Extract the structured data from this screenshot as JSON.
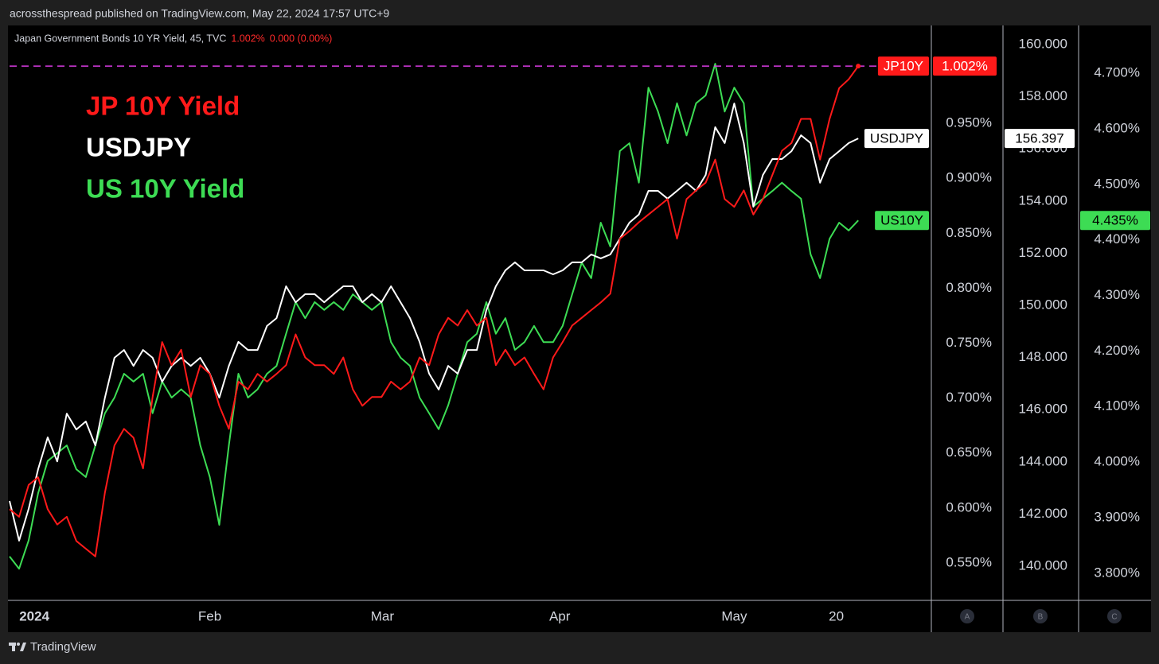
{
  "header": {
    "publisher": "acrossthespread published on TradingView.com, May 22, 2024 17:57 UTC+9",
    "symbol": "Japan Government Bonds 10 YR Yield, 45, TVC",
    "last": "1.002%",
    "change": "0.000 (0.00%)"
  },
  "footer": {
    "brand": "TradingView"
  },
  "chart_data": {
    "type": "line",
    "annotations": [
      {
        "text": "JP 10Y Yield",
        "color": "#ff1a1a"
      },
      {
        "text": "USDJPY",
        "color": "#ffffff"
      },
      {
        "text": "US 10Y Yield",
        "color": "#3ddc54"
      }
    ],
    "axis_names": [
      "A",
      "B",
      "C"
    ],
    "xlim": [
      0,
      96.5
    ],
    "xticks": [
      {
        "value": 2.6,
        "label": "2024"
      },
      {
        "value": 21.0,
        "label": "Feb"
      },
      {
        "value": 39.1,
        "label": "Mar"
      },
      {
        "value": 57.7,
        "label": "Apr"
      },
      {
        "value": 76.0,
        "label": "May"
      },
      {
        "value": 86.7,
        "label": "20"
      }
    ],
    "ylim": [
      0.516,
      1.039
    ],
    "yticks": [
      {
        "value": 0.55,
        "label": "0.550%"
      },
      {
        "value": 0.6,
        "label": "0.600%"
      },
      {
        "value": 0.65,
        "label": "0.650%"
      },
      {
        "value": 0.7,
        "label": "0.700%"
      },
      {
        "value": 0.75,
        "label": "0.750%"
      },
      {
        "value": 0.8,
        "label": "0.800%"
      },
      {
        "value": 0.85,
        "label": "0.850%"
      },
      {
        "value": 0.9,
        "label": "0.900%"
      },
      {
        "value": 0.95,
        "label": "0.950%"
      }
    ],
    "y2lim": [
      138.69,
      160.73
    ],
    "y2ticks": [
      {
        "value": 140,
        "label": "140.000"
      },
      {
        "value": 142,
        "label": "142.000"
      },
      {
        "value": 144,
        "label": "144.000"
      },
      {
        "value": 146,
        "label": "146.000"
      },
      {
        "value": 148,
        "label": "148.000"
      },
      {
        "value": 150,
        "label": "150.000"
      },
      {
        "value": 152,
        "label": "152.000"
      },
      {
        "value": 154,
        "label": "154.000"
      },
      {
        "value": 156,
        "label": "156.000"
      },
      {
        "value": 158,
        "label": "158.000"
      },
      {
        "value": 160,
        "label": "160.000"
      }
    ],
    "y3lim": [
      3.751,
      4.786
    ],
    "y3ticks": [
      {
        "value": 3.8,
        "label": "3.800%"
      },
      {
        "value": 3.9,
        "label": "3.900%"
      },
      {
        "value": 4.0,
        "label": "4.000%"
      },
      {
        "value": 4.1,
        "label": "4.100%"
      },
      {
        "value": 4.2,
        "label": "4.200%"
      },
      {
        "value": 4.3,
        "label": "4.300%"
      },
      {
        "value": 4.4,
        "label": "4.400%"
      },
      {
        "value": 4.5,
        "label": "4.500%"
      },
      {
        "value": 4.6,
        "label": "4.600%"
      },
      {
        "value": 4.7,
        "label": "4.700%"
      }
    ],
    "series": [
      {
        "name": "JP10Y",
        "color": "#ff1a1a",
        "label_text_color": "#ffffff",
        "axis": "y",
        "last_value_label": "1.002%",
        "last_value_line": true,
        "last_value_line_color": "#d63be0",
        "values": [
          0.599,
          0.592,
          0.621,
          0.628,
          0.599,
          0.585,
          0.592,
          0.57,
          0.563,
          0.556,
          0.614,
          0.657,
          0.672,
          0.664,
          0.636,
          0.701,
          0.751,
          0.73,
          0.744,
          0.701,
          0.73,
          0.722,
          0.693,
          0.672,
          0.715,
          0.708,
          0.722,
          0.715,
          0.722,
          0.73,
          0.758,
          0.737,
          0.73,
          0.73,
          0.722,
          0.737,
          0.708,
          0.693,
          0.701,
          0.701,
          0.715,
          0.708,
          0.715,
          0.737,
          0.73,
          0.758,
          0.773,
          0.766,
          0.78,
          0.766,
          0.773,
          0.73,
          0.744,
          0.73,
          0.737,
          0.722,
          0.708,
          0.737,
          0.751,
          0.766,
          0.773,
          0.78,
          0.787,
          0.795,
          0.845,
          0.852,
          0.86,
          0.867,
          0.874,
          0.881,
          0.845,
          0.881,
          0.889,
          0.896,
          0.917,
          0.881,
          0.874,
          0.889,
          0.867,
          0.881,
          0.903,
          0.925,
          0.932,
          0.954,
          0.954,
          0.917,
          0.954,
          0.982,
          0.99,
          1.002
        ]
      },
      {
        "name": "USDJPY",
        "color": "#ffffff",
        "label_text_color": "#000000",
        "axis": "y2",
        "last_value_label": "156.397",
        "last_value_line": false,
        "values": [
          142.5,
          140.98,
          142.2,
          143.72,
          144.94,
          144.02,
          145.85,
          145.24,
          145.55,
          144.63,
          146.46,
          147.99,
          148.29,
          147.68,
          148.29,
          147.99,
          147.07,
          147.68,
          147.99,
          147.68,
          147.99,
          147.38,
          146.46,
          147.68,
          148.6,
          148.29,
          148.29,
          149.21,
          149.51,
          150.73,
          150.12,
          150.43,
          150.43,
          150.12,
          150.43,
          150.73,
          150.73,
          150.12,
          150.43,
          150.12,
          150.73,
          150.12,
          149.51,
          148.6,
          147.38,
          146.77,
          147.68,
          147.38,
          148.29,
          148.29,
          149.82,
          150.73,
          151.34,
          151.65,
          151.34,
          151.34,
          151.34,
          151.19,
          151.34,
          151.65,
          151.65,
          151.95,
          151.8,
          151.95,
          152.56,
          153.17,
          153.48,
          154.39,
          154.39,
          154.09,
          154.39,
          154.7,
          154.39,
          155.0,
          156.83,
          156.22,
          157.74,
          156.22,
          153.78,
          155.0,
          155.61,
          155.61,
          155.91,
          156.52,
          156.22,
          154.7,
          155.61,
          155.91,
          156.22,
          156.397
        ]
      },
      {
        "name": "US10Y",
        "color": "#3ddc54",
        "label_text_color": "#000000",
        "axis": "y3",
        "last_value_label": "4.435%",
        "last_value_line": false,
        "values": [
          3.83,
          3.808,
          3.859,
          3.944,
          4.002,
          4.016,
          4.03,
          3.987,
          3.973,
          4.03,
          4.088,
          4.116,
          4.159,
          4.145,
          4.159,
          4.088,
          4.145,
          4.116,
          4.131,
          4.116,
          4.03,
          3.973,
          3.887,
          4.03,
          4.159,
          4.116,
          4.131,
          4.159,
          4.173,
          4.231,
          4.288,
          4.259,
          4.288,
          4.274,
          4.288,
          4.274,
          4.302,
          4.288,
          4.274,
          4.288,
          4.216,
          4.188,
          4.173,
          4.116,
          4.088,
          4.059,
          4.102,
          4.159,
          4.216,
          4.231,
          4.288,
          4.231,
          4.259,
          4.202,
          4.216,
          4.245,
          4.216,
          4.216,
          4.245,
          4.302,
          4.359,
          4.331,
          4.431,
          4.388,
          4.56,
          4.574,
          4.503,
          4.674,
          4.631,
          4.574,
          4.646,
          4.588,
          4.646,
          4.66,
          4.717,
          4.631,
          4.674,
          4.646,
          4.46,
          4.474,
          4.488,
          4.503,
          4.488,
          4.474,
          4.374,
          4.331,
          4.402,
          4.431,
          4.417,
          4.435
        ]
      }
    ]
  }
}
